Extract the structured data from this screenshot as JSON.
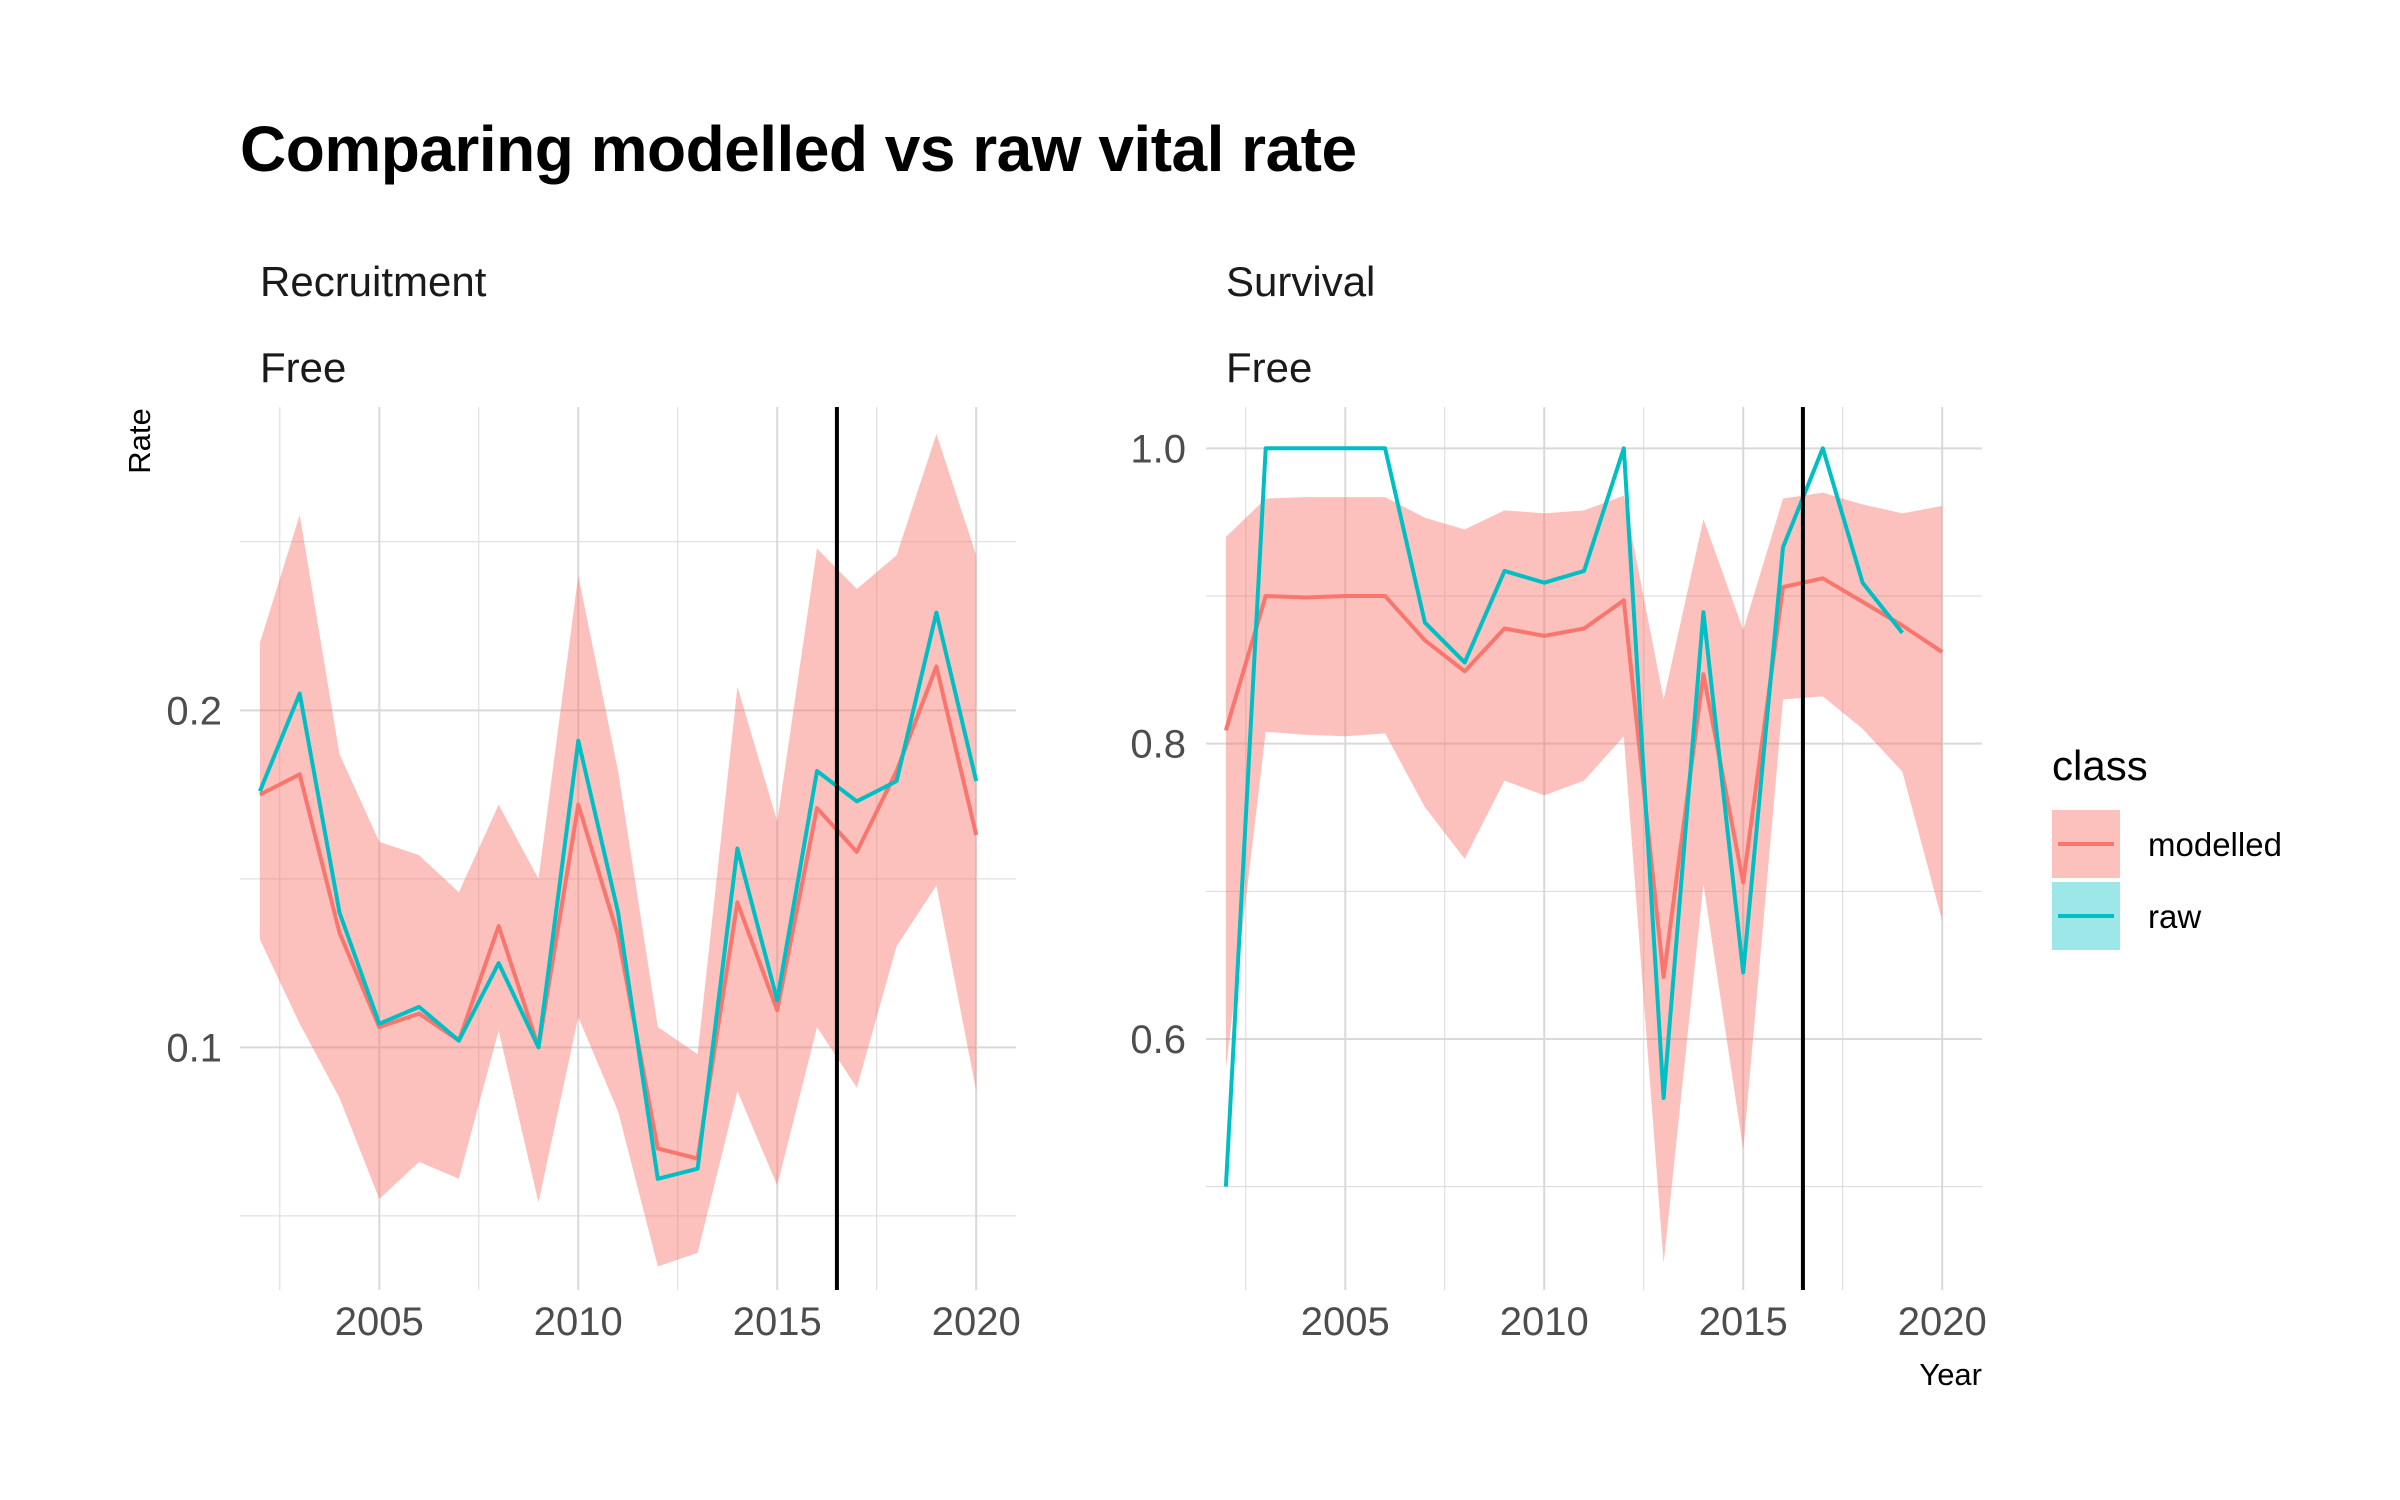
{
  "title": "Comparing modelled vs raw vital rate",
  "colors": {
    "modelled": "#F8766D",
    "raw": "#00BFC4",
    "ribbon": "#F8766D",
    "vline": "#000000",
    "grid": "#d9d9d9"
  },
  "chart_data": [
    {
      "type": "line",
      "panel": "left",
      "strip_top": "Recruitment",
      "strip_bottom": "Free",
      "ylabel": "Rate",
      "xlabel": "",
      "xlim": [
        2001.5,
        2021
      ],
      "ylim": [
        0.028,
        0.29
      ],
      "xticks": [
        2005,
        2010,
        2015,
        2020
      ],
      "yticks": [
        0.1,
        0.2
      ],
      "ytick_labels": [
        "0.1",
        "0.2"
      ],
      "vline": 2016.5,
      "grid": true,
      "x": [
        2002,
        2003,
        2004,
        2005,
        2006,
        2007,
        2008,
        2009,
        2010,
        2011,
        2012,
        2013,
        2014,
        2015,
        2016,
        2017,
        2018,
        2019,
        2020
      ],
      "ribbon": {
        "lower": [
          0.132,
          0.107,
          0.085,
          0.055,
          0.066,
          0.061,
          0.105,
          0.054,
          0.109,
          0.081,
          0.035,
          0.039,
          0.087,
          0.059,
          0.106,
          0.088,
          0.13,
          0.148,
          0.087
        ],
        "upper": [
          0.22,
          0.258,
          0.187,
          0.161,
          0.157,
          0.146,
          0.172,
          0.15,
          0.24,
          0.182,
          0.106,
          0.098,
          0.207,
          0.167,
          0.248,
          0.236,
          0.246,
          0.282,
          0.246
        ]
      },
      "series": [
        {
          "name": "modelled",
          "values": [
            0.175,
            0.181,
            0.134,
            0.106,
            0.11,
            0.102,
            0.136,
            0.1,
            0.172,
            0.133,
            0.07,
            0.067,
            0.143,
            0.111,
            0.171,
            0.158,
            0.182,
            0.213,
            0.163
          ]
        },
        {
          "name": "raw",
          "values": [
            0.176,
            0.205,
            0.14,
            0.107,
            0.112,
            0.102,
            0.125,
            0.1,
            0.191,
            0.14,
            0.061,
            0.064,
            0.159,
            0.114,
            0.182,
            0.173,
            0.179,
            0.229,
            0.179
          ]
        }
      ]
    },
    {
      "type": "line",
      "panel": "right",
      "strip_top": "Survival",
      "strip_bottom": "Free",
      "ylabel": "",
      "xlabel": "Year",
      "xlim": [
        2001.5,
        2021
      ],
      "ylim": [
        0.43,
        1.028
      ],
      "xticks": [
        2005,
        2010,
        2015,
        2020
      ],
      "yticks": [
        0.6,
        0.8,
        1.0
      ],
      "ytick_labels": [
        "0.6",
        "0.8",
        "1.0"
      ],
      "vline": 2016.5,
      "grid": true,
      "x": [
        2002,
        2003,
        2004,
        2005,
        2006,
        2007,
        2008,
        2009,
        2010,
        2011,
        2012,
        2013,
        2014,
        2015,
        2016,
        2017,
        2018,
        2019,
        2020
      ],
      "ribbon": {
        "lower": [
          0.58,
          0.808,
          0.806,
          0.805,
          0.807,
          0.757,
          0.722,
          0.775,
          0.765,
          0.775,
          0.805,
          0.448,
          0.705,
          0.525,
          0.83,
          0.832,
          0.81,
          0.781,
          0.68
        ],
        "upper": [
          0.94,
          0.966,
          0.967,
          0.967,
          0.967,
          0.953,
          0.945,
          0.958,
          0.956,
          0.958,
          0.968,
          0.83,
          0.952,
          0.877,
          0.966,
          0.97,
          0.962,
          0.956,
          0.961
        ]
      },
      "series": [
        {
          "name": "modelled",
          "values": [
            0.809,
            0.9,
            0.899,
            0.9,
            0.9,
            0.87,
            0.849,
            0.878,
            0.873,
            0.878,
            0.897,
            0.642,
            0.847,
            0.706,
            0.906,
            0.912,
            0.896,
            0.88,
            0.862
          ]
        },
        {
          "name": "raw",
          "values": [
            0.5,
            1.0,
            1.0,
            1.0,
            1.0,
            0.882,
            0.855,
            0.917,
            0.909,
            0.917,
            1.0,
            0.56,
            0.889,
            0.645,
            0.933,
            1.0,
            0.909,
            0.875,
            null
          ]
        }
      ]
    }
  ],
  "legend": {
    "title": "class",
    "items": [
      {
        "label": "modelled",
        "key": "modelled"
      },
      {
        "label": "raw",
        "key": "raw"
      }
    ]
  }
}
